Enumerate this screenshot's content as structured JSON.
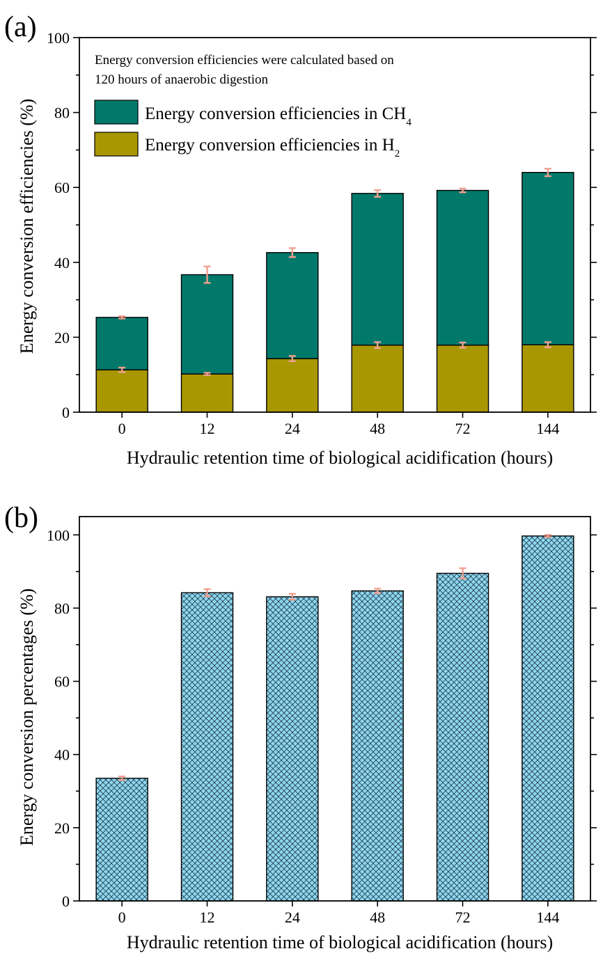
{
  "chart_data": [
    {
      "panel": "(a)",
      "type": "bar",
      "stacked": true,
      "categories": [
        "0",
        "12",
        "24",
        "48",
        "72",
        "144"
      ],
      "xlabel": "Hydraulic retention time of biological acidification (hours)",
      "ylabel": "Energy conversion efficiencies  (%)",
      "ylim": [
        0,
        100
      ],
      "yticks": [
        "0",
        "20",
        "40",
        "60",
        "80",
        "100"
      ],
      "note_lines": [
        "Energy conversion efficiencies were calculated based on",
        "120 hours of anaerobic digestion"
      ],
      "series": [
        {
          "name": "Energy conversion efficiencies in H",
          "subscript": "2",
          "color": "#a89700",
          "values": [
            11.3,
            10.2,
            14.3,
            17.9,
            17.9,
            18.0
          ],
          "errors": [
            0.6,
            0.3,
            0.7,
            0.8,
            0.7,
            0.7
          ]
        },
        {
          "name": "Energy conversion efficiencies in CH",
          "subscript": "4",
          "color": "#00796b",
          "values": [
            14.0,
            26.5,
            28.3,
            40.5,
            41.3,
            46.0
          ],
          "totals": [
            25.3,
            36.7,
            42.6,
            58.4,
            59.2,
            64.0
          ],
          "errors": [
            0.3,
            2.2,
            1.2,
            0.9,
            0.5,
            1.0
          ]
        }
      ],
      "legend": "top-left"
    },
    {
      "panel": "(b)",
      "type": "bar",
      "categories": [
        "0",
        "12",
        "24",
        "48",
        "72",
        "144"
      ],
      "xlabel": "Hydraulic retention time of biological acidification (hours)",
      "ylabel": "Energy conversion percentages (%)",
      "ylim": [
        0,
        105
      ],
      "yticks": [
        "0",
        "20",
        "40",
        "60",
        "80",
        "100"
      ],
      "series": [
        {
          "color": "#8fd6ef",
          "hatch": "crosshatch",
          "values": [
            33.5,
            84.2,
            83.1,
            84.7,
            89.5,
            99.7
          ],
          "errors": [
            0.5,
            1.0,
            0.8,
            0.6,
            1.4,
            0.3
          ]
        }
      ]
    }
  ]
}
